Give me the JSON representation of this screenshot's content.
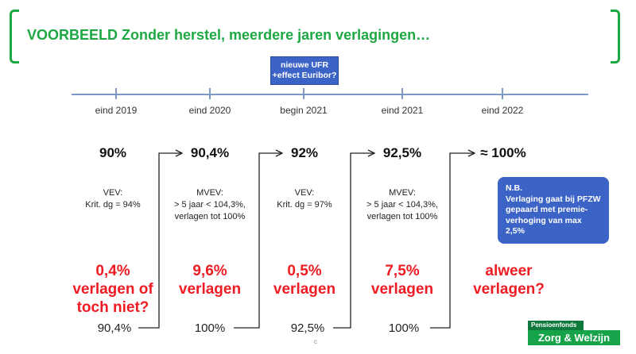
{
  "title": "VOORBEELD Zonder herstel, meerdere jaren verlagingen…",
  "callout": {
    "line1": "nieuwe UFR",
    "line2": "+effect Euribor?"
  },
  "columns": [
    {
      "label": "eind 2019",
      "percentage": "90%",
      "note": [
        "VEV:",
        "Krit. dg = 94%"
      ],
      "result": [
        "0,4%",
        "verlagen of",
        "toch niet?"
      ],
      "final": "90,4%"
    },
    {
      "label": "eind 2020",
      "percentage": "90,4%",
      "note": [
        "MVEV:",
        "> 5 jaar < 104,3%,",
        "verlagen tot 100%"
      ],
      "result": [
        "9,6%",
        "verlagen"
      ],
      "final": "100%"
    },
    {
      "label": "begin 2021",
      "percentage": "92%",
      "note": [
        "VEV:",
        "Krit. dg = 97%"
      ],
      "result": [
        "0,5%",
        "verlagen"
      ],
      "final": "92,5%"
    },
    {
      "label": "eind 2021",
      "percentage": "92,5%",
      "note": [
        "MVEV:",
        "> 5 jaar < 104,3%,",
        "verlagen tot 100%"
      ],
      "result": [
        "7,5%",
        "verlagen"
      ],
      "final": "100%"
    },
    {
      "label": "eind 2022",
      "percentage": "≈ 100%",
      "note": [],
      "result": [
        "alweer",
        "verlagen?"
      ],
      "final": ""
    }
  ],
  "nb_box": {
    "heading": "N.B.",
    "lines": [
      "Verlaging gaat bij PFZW",
      "gepaard met premie-",
      "verhoging van max 2,5%"
    ]
  },
  "logo": {
    "top": "Pensioenfonds",
    "bottom": "Zorg & Welzijn"
  },
  "slide_mark": "c",
  "colors": {
    "green": "#1ea844",
    "red": "#ef1c24",
    "blue": "#3c63c6"
  }
}
